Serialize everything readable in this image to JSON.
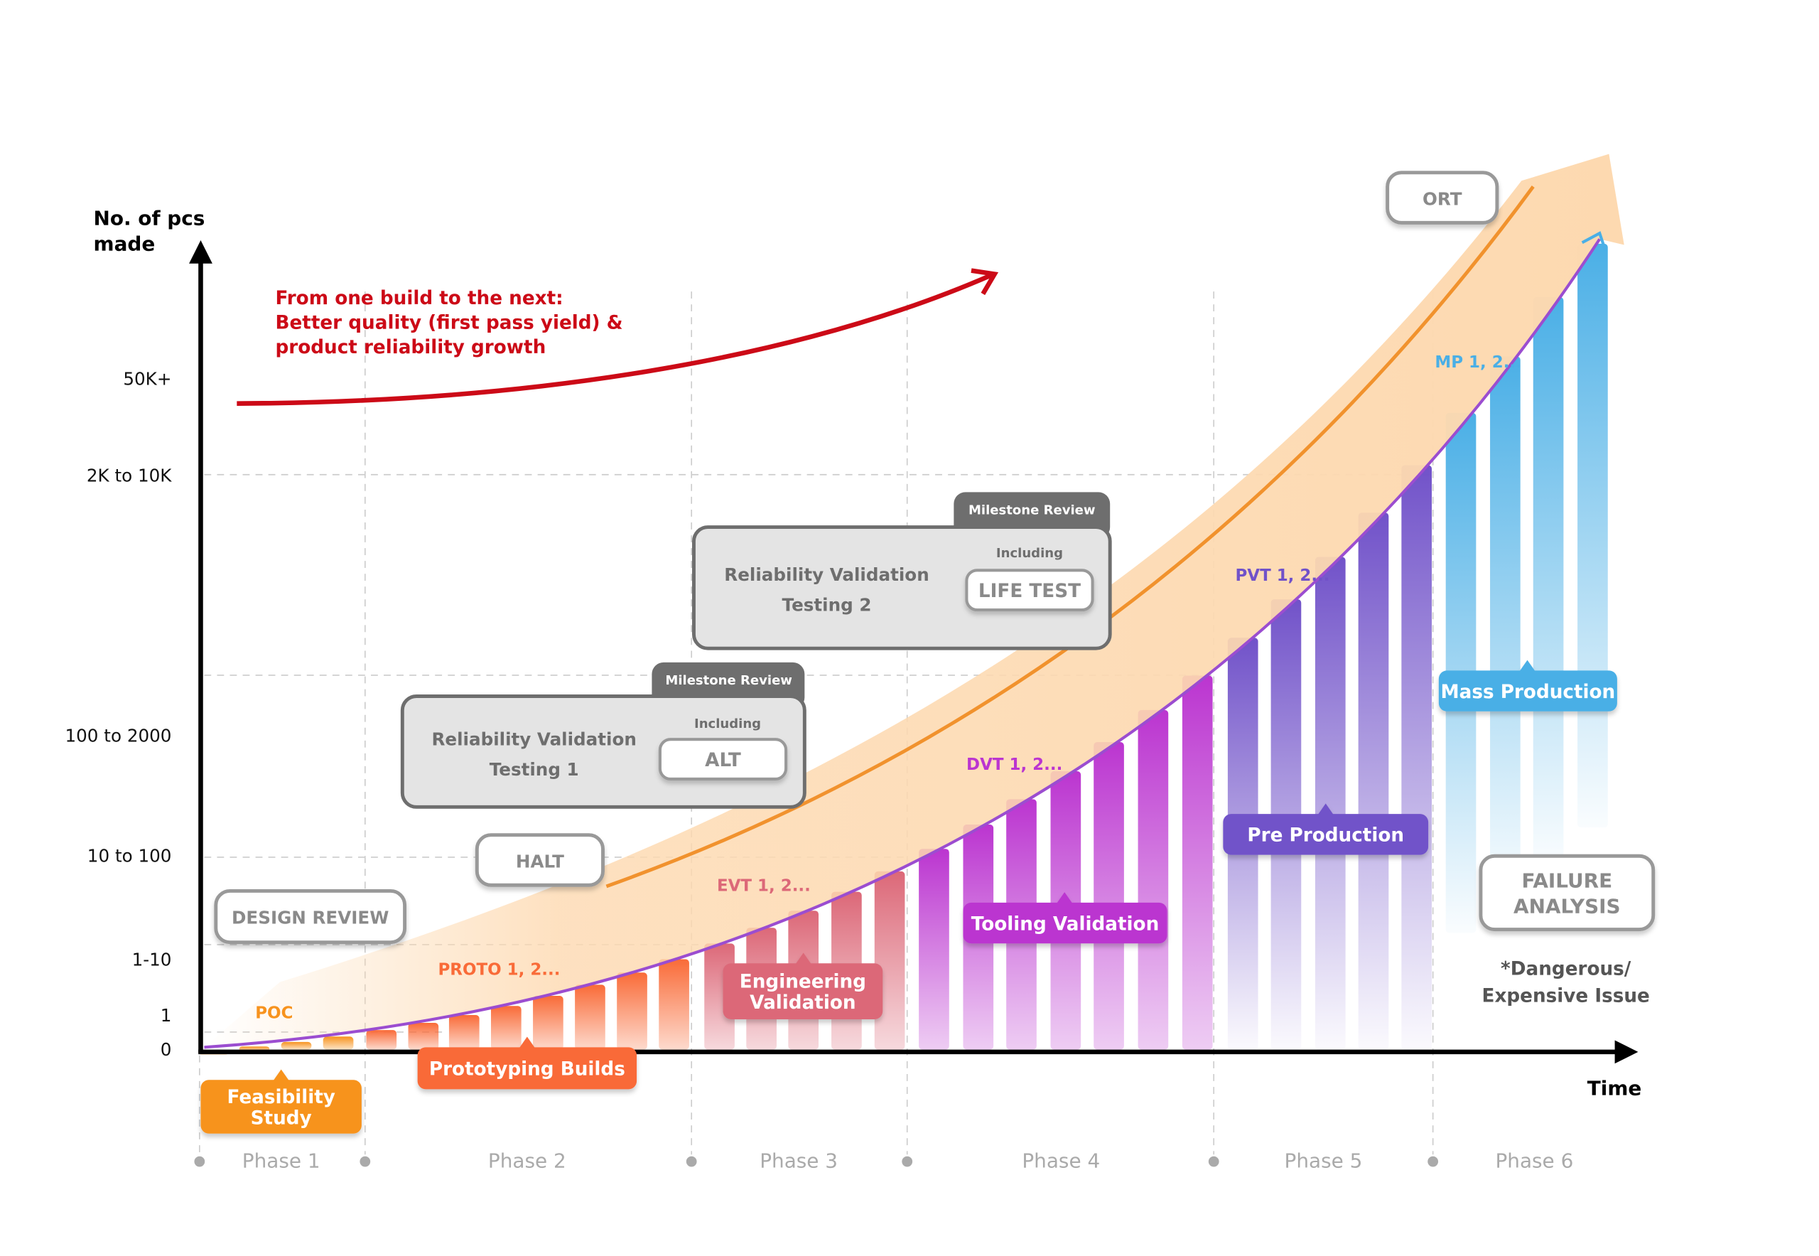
{
  "axis": {
    "y_title": [
      "No. of pcs",
      "made"
    ],
    "x_title": "Time",
    "y_ticks": [
      "50K+",
      "2K to 10K",
      "100 to 2000",
      "10 to 100",
      "1-10",
      "1",
      "0"
    ]
  },
  "annotation": {
    "lines": [
      "From one build to the next:",
      "Better quality (first pass yield) &",
      "product reliability growth"
    ],
    "color": "#cc0a17"
  },
  "phases": [
    {
      "label": "Phase 1",
      "stage": [
        "Feasibility",
        "Study"
      ],
      "build": "POC",
      "color": "#f7931e"
    },
    {
      "label": "Phase 2",
      "stage": [
        "Prototyping Builds"
      ],
      "build": "PROTO 1, 2...",
      "color": "#f96b38"
    },
    {
      "label": "Phase 3",
      "stage": [
        "Engineering",
        "Validation"
      ],
      "build": "EVT 1, 2...",
      "color": "#dc6878"
    },
    {
      "label": "Phase 4",
      "stage": [
        "Tooling Validation"
      ],
      "build": "DVT 1, 2...",
      "color": "#bb35d0"
    },
    {
      "label": "Phase 5",
      "stage": [
        "Pre Production"
      ],
      "build": "PVT 1, 2...",
      "color": "#7152c9"
    },
    {
      "label": "Phase 6",
      "stage": [
        "Mass Production"
      ],
      "build": "MP 1, 2...",
      "color": "#4aafe6"
    }
  ],
  "reviews": {
    "design_review": "DESIGN REVIEW",
    "halt": "HALT",
    "ort": "ORT",
    "failure_analysis": [
      "FAILURE",
      "ANALYSIS"
    ],
    "failure_note": [
      "*Dangerous/",
      "Expensive Issue"
    ],
    "rvt1": {
      "tab": "Milestone Review",
      "title": [
        "Reliability Validation",
        "Testing 1"
      ],
      "including": "Including",
      "test": "ALT"
    },
    "rvt2": {
      "tab": "Milestone Review",
      "title": [
        "Reliability Validation",
        "Testing 2"
      ],
      "including": "Including",
      "test": "LIFE TEST"
    }
  }
}
